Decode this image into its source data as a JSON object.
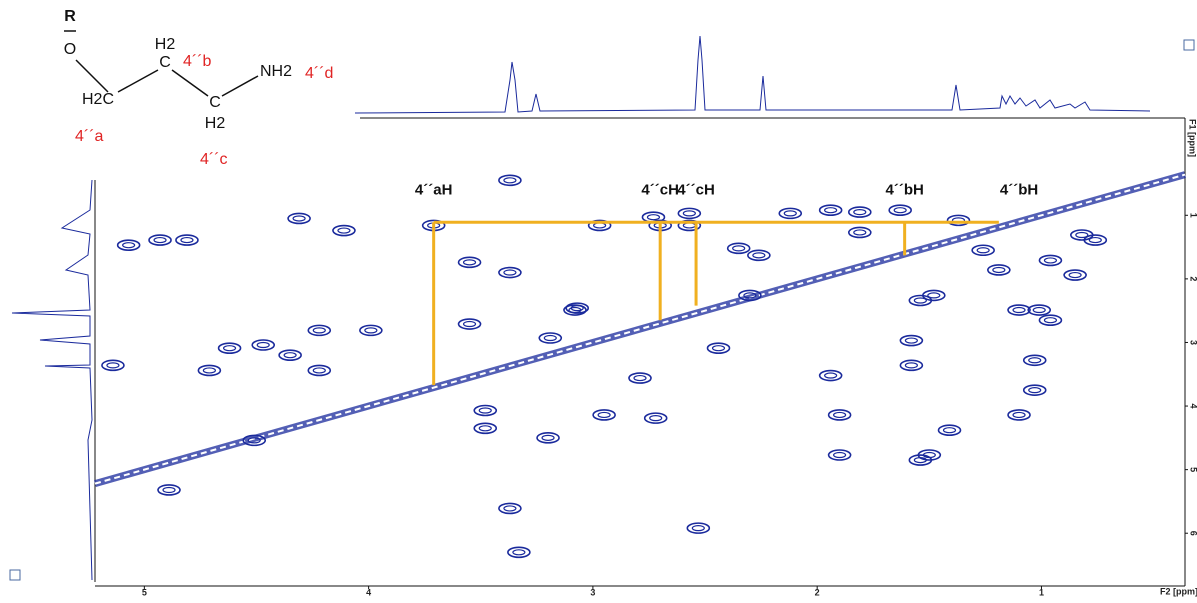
{
  "structure": {
    "substituent": "R",
    "oxygen": "O",
    "h2c": "H2C",
    "h2_top": "H2",
    "c_top": "C",
    "nh2": "NH2",
    "c_bottom": "C",
    "h2_bottom": "H2",
    "label_a": "4´´a",
    "label_b": "4´´b",
    "label_c": "4´´c",
    "label_d": "4´´d"
  },
  "chart_data": {
    "type": "cosy",
    "xlabel": "F2 [ppm]",
    "ylabel": "F1 [ppm]",
    "xlim": [
      5.22,
      0.36
    ],
    "ylim": [
      -0.53,
      6.83
    ],
    "xticks": [
      5,
      4,
      3,
      2,
      1
    ],
    "yticks": [
      1,
      2,
      3,
      4,
      5,
      6
    ],
    "color": "#1a2a9c",
    "annotation_color": "#f0b020",
    "peaks": [
      {
        "x": 5.07,
        "y": 1.47
      },
      {
        "x": 4.93,
        "y": 1.39
      },
      {
        "x": 4.81,
        "y": 1.39
      },
      {
        "x": 5.14,
        "y": 3.36
      },
      {
        "x": 4.71,
        "y": 3.44
      },
      {
        "x": 4.62,
        "y": 3.09
      },
      {
        "x": 4.47,
        "y": 3.04
      },
      {
        "x": 4.35,
        "y": 3.2
      },
      {
        "x": 4.22,
        "y": 3.44
      },
      {
        "x": 4.11,
        "y": 1.24
      },
      {
        "x": 4.31,
        "y": 1.05
      },
      {
        "x": 4.22,
        "y": 2.81
      },
      {
        "x": 3.99,
        "y": 2.81
      },
      {
        "x": 4.51,
        "y": 4.54
      },
      {
        "x": 4.89,
        "y": 5.32
      },
      {
        "x": 3.48,
        "y": 4.07
      },
      {
        "x": 3.48,
        "y": 4.35
      },
      {
        "x": 3.71,
        "y": 1.16
      },
      {
        "x": 3.55,
        "y": 1.74
      },
      {
        "x": 3.55,
        "y": 2.71
      },
      {
        "x": 3.37,
        "y": 1.9
      },
      {
        "x": 3.37,
        "y": 0.45
      },
      {
        "x": 3.19,
        "y": 2.93
      },
      {
        "x": 3.08,
        "y": 2.49
      },
      {
        "x": 3.37,
        "y": 5.61
      },
      {
        "x": 3.33,
        "y": 6.3
      },
      {
        "x": 3.2,
        "y": 4.5
      },
      {
        "x": 2.95,
        "y": 4.14
      },
      {
        "x": 2.97,
        "y": 1.16
      },
      {
        "x": 3.07,
        "y": 2.46
      },
      {
        "x": 2.73,
        "y": 1.03
      },
      {
        "x": 2.57,
        "y": 0.97
      },
      {
        "x": 2.7,
        "y": 1.16
      },
      {
        "x": 2.57,
        "y": 1.16
      },
      {
        "x": 2.72,
        "y": 4.19
      },
      {
        "x": 2.79,
        "y": 3.56
      },
      {
        "x": 2.53,
        "y": 5.92
      },
      {
        "x": 2.44,
        "y": 3.09
      },
      {
        "x": 2.35,
        "y": 1.52
      },
      {
        "x": 2.26,
        "y": 1.63
      },
      {
        "x": 2.12,
        "y": 0.97
      },
      {
        "x": 2.3,
        "y": 2.26
      },
      {
        "x": 1.94,
        "y": 0.92
      },
      {
        "x": 1.81,
        "y": 0.95
      },
      {
        "x": 1.81,
        "y": 1.27
      },
      {
        "x": 1.94,
        "y": 3.52
      },
      {
        "x": 1.9,
        "y": 4.14
      },
      {
        "x": 1.9,
        "y": 4.77
      },
      {
        "x": 1.63,
        "y": 0.92
      },
      {
        "x": 1.54,
        "y": 2.34
      },
      {
        "x": 1.58,
        "y": 3.36
      },
      {
        "x": 1.58,
        "y": 2.97
      },
      {
        "x": 1.54,
        "y": 4.85
      },
      {
        "x": 1.37,
        "y": 1.08
      },
      {
        "x": 1.26,
        "y": 1.55
      },
      {
        "x": 1.19,
        "y": 1.86
      },
      {
        "x": 0.96,
        "y": 1.71
      },
      {
        "x": 0.82,
        "y": 1.31
      },
      {
        "x": 0.76,
        "y": 1.39
      },
      {
        "x": 0.85,
        "y": 1.94
      },
      {
        "x": 1.01,
        "y": 2.49
      },
      {
        "x": 0.96,
        "y": 2.65
      },
      {
        "x": 1.1,
        "y": 2.49
      },
      {
        "x": 1.03,
        "y": 3.28
      },
      {
        "x": 1.03,
        "y": 3.75
      },
      {
        "x": 1.1,
        "y": 4.14
      },
      {
        "x": 1.41,
        "y": 4.38
      },
      {
        "x": 1.5,
        "y": 4.77
      },
      {
        "x": 1.48,
        "y": 2.26
      }
    ],
    "connector": {
      "y": 1.11,
      "x": [
        3.71,
        1.19
      ]
    },
    "annotations": [
      {
        "text": "4´´aH",
        "x": 3.71,
        "y": 3.67
      },
      {
        "text": "4´´cH",
        "x": 2.7,
        "y": 2.65
      },
      {
        "text": "4´´cH",
        "x": 2.54,
        "y": 2.42
      },
      {
        "text": "4´´bH",
        "x": 1.61,
        "y": 1.63
      },
      {
        "text": "4´´bH",
        "x": 1.1,
        "y": null
      }
    ]
  }
}
